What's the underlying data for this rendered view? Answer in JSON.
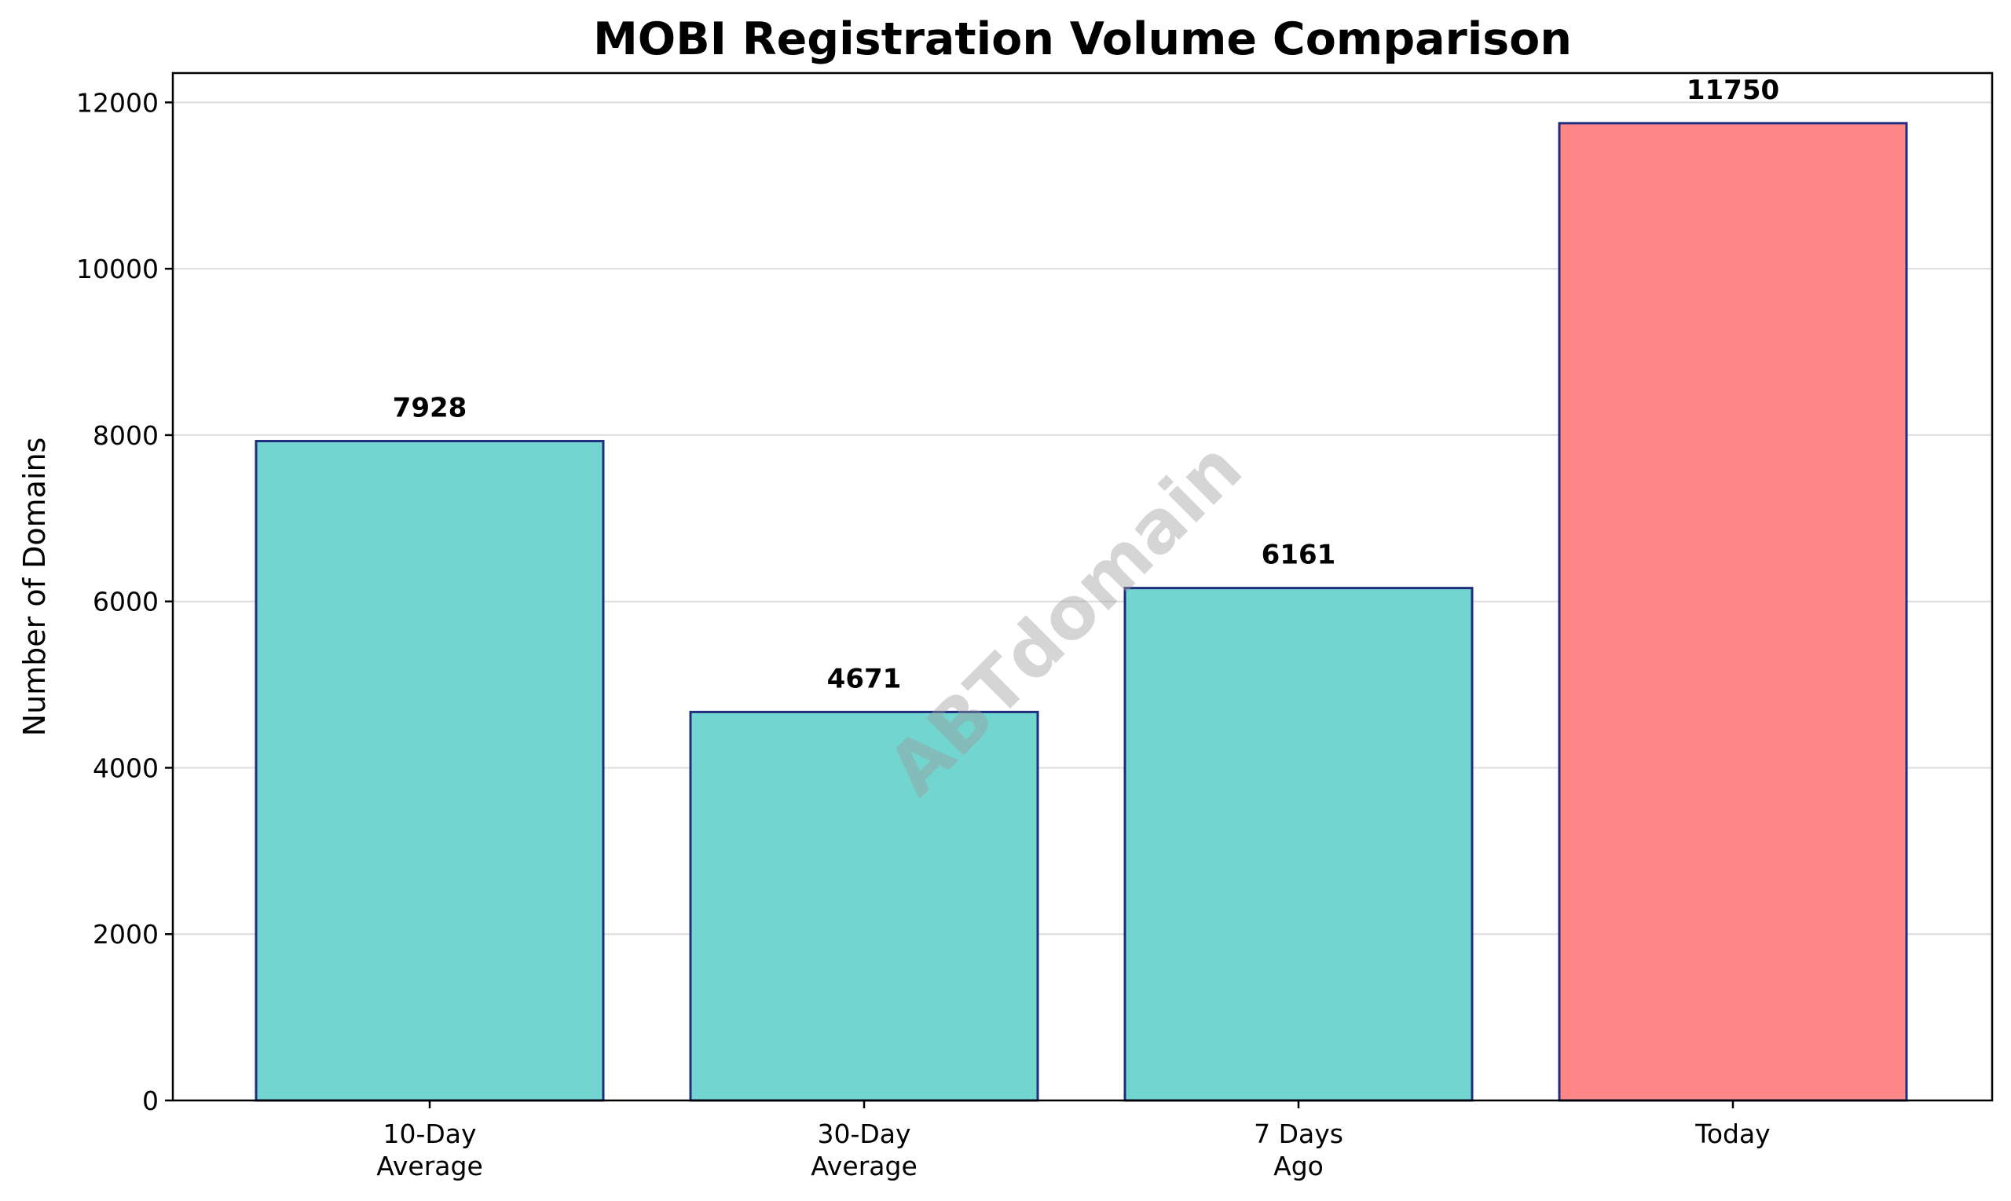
{
  "chart_data": {
    "type": "bar",
    "title": "MOBI Registration Volume Comparison",
    "xlabel": "",
    "ylabel": "Number of Domains",
    "categories": [
      [
        "10-Day",
        "Average"
      ],
      [
        "30-Day",
        "Average"
      ],
      [
        "7 Days",
        "Ago"
      ],
      [
        "Today"
      ]
    ],
    "values": [
      7928,
      4671,
      6161,
      11750
    ],
    "data_labels": [
      "7928",
      "4671",
      "6161",
      "11750"
    ],
    "bar_colors": [
      "#72d5cf",
      "#72d5cf",
      "#72d5cf",
      "#ff8787"
    ],
    "bar_edge_color": "#1f2d7f",
    "ylim": [
      0,
      12353
    ],
    "yticks": [
      0,
      2000,
      4000,
      6000,
      8000,
      10000,
      12000
    ],
    "grid": "horizontal",
    "watermark": "ABTdomain"
  }
}
